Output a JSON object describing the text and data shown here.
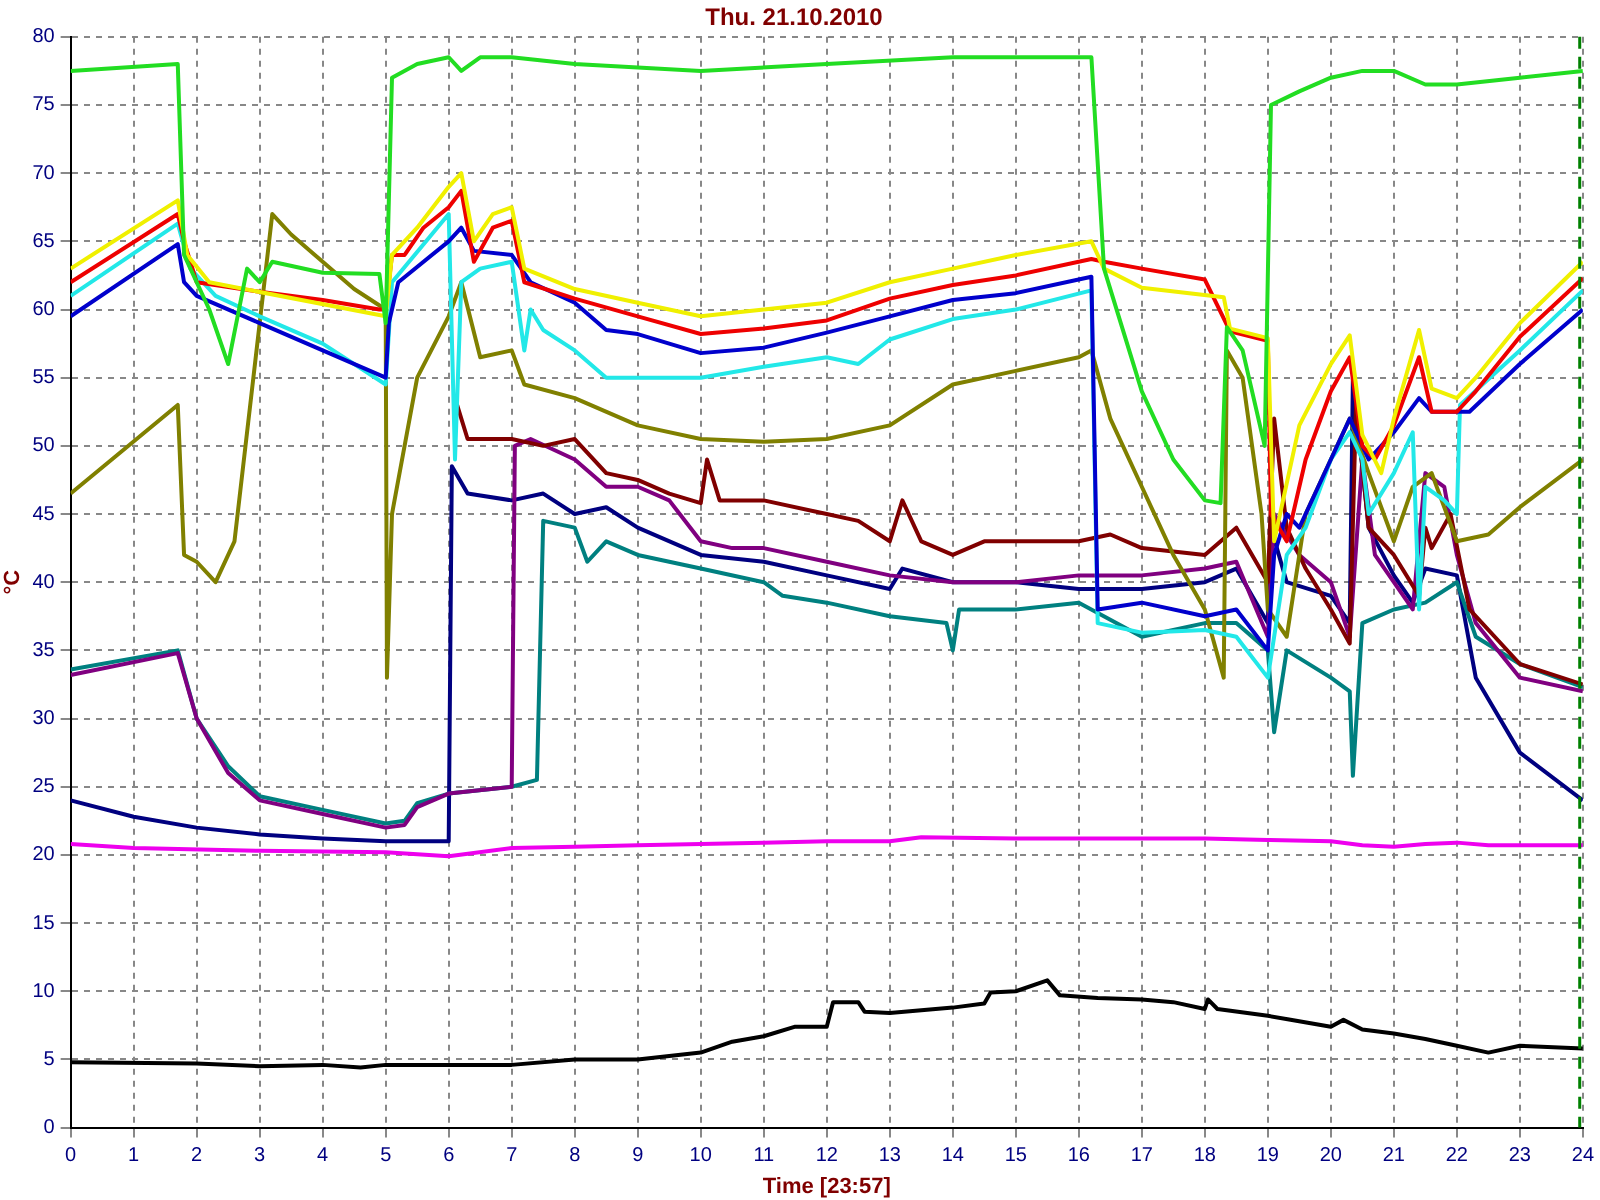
{
  "chart_data": {
    "type": "line",
    "title": "Thu. 21.10.2010",
    "xlabel": "Time [23:57]",
    "ylabel": "°C",
    "xlim": [
      0,
      24
    ],
    "xticks": [
      0,
      1,
      2,
      3,
      4,
      5,
      6,
      7,
      8,
      9,
      10,
      11,
      12,
      13,
      14,
      15,
      16,
      17,
      18,
      19,
      20,
      21,
      22,
      23,
      24
    ],
    "ylim": [
      0,
      80
    ],
    "yticks": [
      0,
      5,
      10,
      15,
      20,
      25,
      30,
      35,
      40,
      45,
      50,
      55,
      60,
      65,
      70,
      75,
      80
    ],
    "grid": true,
    "legend": false,
    "marker": "none",
    "line_style": "solid",
    "ref_lines": [
      {
        "axis": "x",
        "value": 23.95,
        "color": "#008000",
        "line_style": "dashed"
      }
    ],
    "series": [
      {
        "color": "#22dd22",
        "x": [
          0,
          1.7,
          1.8,
          2.2,
          2.5,
          2.8,
          3,
          3.2,
          4,
          4.9,
          5,
          5.1,
          5.5,
          6,
          6.2,
          6.5,
          7,
          8,
          10,
          12,
          14,
          16.2,
          16.4,
          17,
          17.5,
          18,
          18.25,
          18.35,
          18.6,
          18.95,
          19.05,
          19.5,
          20,
          20.5,
          21,
          21.5,
          22,
          23,
          24
        ],
        "values": [
          77.5,
          78,
          64,
          60,
          56,
          63,
          62,
          63.5,
          62.7,
          62.6,
          59,
          77,
          78,
          78.5,
          77.5,
          78.5,
          78.5,
          78,
          77.5,
          78,
          78.5,
          78.5,
          63,
          54,
          49,
          46,
          45.8,
          58.7,
          57,
          50,
          75,
          76,
          77,
          77.5,
          77.5,
          76.5,
          76.5,
          77,
          77.5
        ]
      },
      {
        "color": "#f0f000",
        "x": [
          0,
          1.7,
          1.85,
          2.2,
          5,
          5.1,
          5.5,
          6,
          6.2,
          6.4,
          6.7,
          7,
          7.2,
          8,
          9,
          10,
          11,
          12,
          13,
          14,
          15,
          16.2,
          16.4,
          17,
          18.3,
          18.4,
          19,
          19.1,
          19.5,
          20,
          20.3,
          20.5,
          20.8,
          21,
          21.4,
          21.6,
          22,
          22.3,
          23,
          24
        ],
        "values": [
          63,
          68,
          64,
          62,
          59.5,
          64,
          66,
          69,
          70,
          65,
          67,
          67.5,
          63,
          61.5,
          60.5,
          59.5,
          60,
          60.5,
          62,
          63,
          64,
          65,
          63,
          61.6,
          60.9,
          58.6,
          57.9,
          43,
          51.5,
          56,
          58.1,
          50.8,
          48,
          52,
          58.5,
          54.2,
          53.5,
          55,
          59,
          63.5
        ]
      },
      {
        "color": "#ee0000",
        "x": [
          0,
          1.7,
          1.8,
          2,
          3,
          4,
          4.9,
          5,
          5.1,
          5.3,
          5.6,
          6,
          6.2,
          6.4,
          6.7,
          7,
          7.2,
          8,
          9,
          10,
          11,
          12,
          13,
          14,
          15,
          16.2,
          16.4,
          17,
          18,
          18.4,
          19,
          19.05,
          19.3,
          19.6,
          20,
          20.3,
          20.5,
          20.7,
          21,
          21.4,
          21.6,
          22,
          22.3,
          23,
          24
        ],
        "values": [
          62,
          67,
          65,
          62,
          61.3,
          60.7,
          60,
          60,
          64,
          64,
          66,
          67.5,
          68.7,
          63.5,
          66,
          66.5,
          62,
          60.8,
          59.5,
          58.2,
          58.6,
          59.2,
          60.8,
          61.8,
          62.5,
          63.7,
          63.5,
          63,
          62.2,
          58.4,
          57.7,
          45,
          43,
          49,
          54,
          56.5,
          50,
          49,
          51.5,
          56.5,
          52.5,
          52.5,
          54,
          58,
          62.3
        ]
      },
      {
        "color": "#0000cc",
        "x": [
          0,
          1.7,
          1.8,
          2,
          3,
          4,
          5,
          5.05,
          5.2,
          6,
          6.2,
          6.4,
          7,
          7.3,
          8,
          8.5,
          9,
          10,
          11,
          12,
          13,
          14,
          15,
          16.2,
          16.3,
          17,
          18,
          18.5,
          19,
          19.1,
          19.3,
          19.5,
          20,
          20.3,
          20.6,
          21,
          21.4,
          21.6,
          22.2,
          23,
          24
        ],
        "values": [
          59.5,
          64.8,
          62,
          61,
          59,
          57,
          55,
          59,
          62,
          65,
          66,
          64.3,
          64,
          62,
          60.5,
          58.5,
          58.2,
          56.8,
          57.2,
          58.3,
          59.5,
          60.7,
          61.2,
          62.4,
          38,
          38.5,
          37.5,
          38,
          35,
          42,
          45,
          44,
          49,
          52,
          49,
          51,
          53.5,
          52.5,
          52.5,
          56,
          60
        ]
      },
      {
        "color": "#22e8e8",
        "x": [
          0,
          1.7,
          1.9,
          2.3,
          3,
          4,
          5,
          5.1,
          6,
          6.1,
          6.2,
          6.5,
          7,
          7.2,
          7.3,
          7.5,
          8,
          8.5,
          9,
          10,
          11,
          12,
          12.5,
          13,
          14,
          15,
          16.2,
          16.3,
          17,
          18,
          18.5,
          19,
          19.3,
          19.6,
          20,
          20.3,
          20.5,
          20.6,
          21,
          21.3,
          21.4,
          21.5,
          21.8,
          22,
          22.05,
          23,
          24
        ],
        "values": [
          61,
          66.3,
          63,
          61,
          59.5,
          57.5,
          54.5,
          62,
          67,
          49,
          62,
          63,
          63.5,
          57,
          60,
          58.5,
          57,
          55,
          55,
          55,
          55.8,
          56.5,
          56,
          57.8,
          59.3,
          60,
          61.4,
          37,
          36.3,
          36.5,
          36,
          33,
          42,
          44,
          49,
          51,
          49,
          45,
          48,
          51,
          38,
          47,
          46,
          45,
          53,
          57,
          61.4
        ]
      },
      {
        "color": "#808000",
        "x": [
          0,
          1.7,
          1.8,
          2,
          2.3,
          2.6,
          3,
          3.2,
          3.5,
          4,
          4.5,
          5,
          5.02,
          5.1,
          5.5,
          6,
          6.2,
          6.5,
          7,
          7.2,
          8,
          9,
          10,
          11,
          12,
          13,
          14,
          15,
          16,
          16.2,
          16.5,
          17,
          17.5,
          18,
          18.3,
          18.35,
          18.6,
          18.9,
          19,
          19.3,
          19.6,
          20,
          20.3,
          20.6,
          21,
          21.3,
          21.6,
          22,
          22.5,
          23,
          24
        ],
        "values": [
          46.5,
          53,
          42,
          41.5,
          40,
          43,
          59,
          67,
          65.5,
          63.5,
          61.5,
          60,
          33,
          45,
          55,
          59.5,
          62,
          56.5,
          57,
          54.5,
          53.5,
          51.5,
          50.5,
          50.3,
          50.5,
          51.5,
          54.5,
          55.5,
          56.5,
          57,
          52,
          47,
          42,
          38,
          33,
          57,
          55,
          45,
          38,
          36,
          45,
          49,
          52,
          48,
          43,
          47,
          48,
          43,
          43.5,
          45.5,
          49
        ]
      },
      {
        "color": "#800000",
        "x": [
          6.1,
          6.3,
          7,
          7.5,
          8,
          8.5,
          9,
          9.5,
          10,
          10.1,
          10.3,
          11,
          12,
          12.5,
          13,
          13.2,
          13.5,
          14,
          14.5,
          15,
          16,
          16.5,
          17,
          18,
          18.5,
          19,
          19.1,
          19.3,
          19.6,
          20,
          20.3,
          20.4,
          20.6,
          21,
          21.4,
          21.5,
          21.6,
          21.9,
          22.2,
          23,
          24
        ],
        "values": [
          53.5,
          50.5,
          50.5,
          50,
          50.5,
          48,
          47.5,
          46.5,
          45.8,
          49,
          46,
          46,
          45,
          44.5,
          43,
          46,
          43,
          42,
          43,
          43,
          43,
          43.5,
          42.5,
          42,
          44,
          40,
          52,
          44,
          41,
          38,
          35.5,
          53,
          44,
          42,
          39,
          44,
          42.5,
          45,
          38,
          34,
          32.5
        ]
      },
      {
        "color": "#800080",
        "x": [
          0,
          1.7,
          2,
          2.5,
          3,
          4,
          5,
          5.3,
          5.5,
          6,
          7,
          7.05,
          7.3,
          8,
          8.5,
          9,
          9.5,
          10,
          10.5,
          11,
          12,
          13,
          14,
          15,
          16,
          17,
          18,
          18.5,
          19,
          19.1,
          19.5,
          20,
          20.3,
          20.5,
          20.7,
          21,
          21.3,
          21.5,
          21.8,
          22,
          22.3,
          23,
          24
        ],
        "values": [
          33.2,
          34.8,
          30,
          26,
          24,
          23,
          22,
          22.2,
          23.5,
          24.5,
          25,
          50,
          50.5,
          49,
          47,
          47,
          46,
          43,
          42.5,
          42.5,
          41.5,
          40.5,
          40,
          40,
          40.5,
          40.5,
          41,
          41.5,
          36,
          45,
          42,
          40,
          36,
          49,
          42,
          40,
          38,
          48,
          47,
          42,
          37,
          33,
          32
        ]
      },
      {
        "color": "#008080",
        "x": [
          0,
          1.7,
          2,
          2.5,
          3,
          4,
          5,
          5.3,
          5.5,
          6,
          7,
          7.4,
          7.5,
          8,
          8.2,
          8.5,
          9,
          10,
          11,
          11.3,
          12,
          13,
          13.9,
          14,
          14.1,
          15,
          16,
          17,
          18,
          18.5,
          19,
          19.1,
          19.3,
          20,
          20.3,
          20.35,
          20.5,
          21,
          21.5,
          22,
          22.3,
          23,
          24
        ],
        "values": [
          33.6,
          35,
          30,
          26.5,
          24.3,
          23.3,
          22.3,
          22.5,
          23.8,
          24.5,
          25,
          25.5,
          44.5,
          44,
          41.5,
          43,
          42,
          41,
          40,
          39,
          38.5,
          37.5,
          37,
          35,
          38,
          38,
          38.5,
          36,
          37,
          37,
          35,
          29,
          35,
          33,
          32,
          25.8,
          37,
          38,
          38.5,
          40,
          36,
          34,
          32.3
        ]
      },
      {
        "color": "#000080",
        "x": [
          0,
          1,
          2,
          3,
          4,
          5,
          6,
          6.05,
          6.3,
          7,
          7.5,
          8,
          8.5,
          9,
          10,
          11,
          12,
          13,
          13.2,
          14,
          15,
          16,
          17,
          18,
          18.5,
          19,
          19.05,
          19.3,
          20,
          20.3,
          20.35,
          20.6,
          21,
          21.3,
          21.5,
          22,
          22.3,
          23,
          24
        ],
        "values": [
          24,
          22.8,
          22,
          21.5,
          21.2,
          21,
          21,
          48.5,
          46.5,
          46,
          46.5,
          45,
          45.5,
          44,
          42,
          41.5,
          40.5,
          39.5,
          41,
          40,
          40,
          39.5,
          39.5,
          40,
          41,
          37,
          44,
          40,
          39,
          37,
          55,
          44,
          40.5,
          38.5,
          41,
          40.5,
          33,
          27.5,
          24
        ]
      },
      {
        "color": "#ee00ee",
        "x": [
          0,
          1,
          3,
          5,
          6,
          7,
          8,
          9,
          11,
          12,
          13,
          13.5,
          15,
          17,
          18,
          19,
          20,
          20.5,
          21,
          21.5,
          22,
          22.5,
          24
        ],
        "values": [
          20.8,
          20.5,
          20.3,
          20.2,
          19.9,
          20.5,
          20.6,
          20.7,
          20.9,
          21,
          21,
          21.3,
          21.2,
          21.2,
          21.2,
          21.1,
          21,
          20.7,
          20.6,
          20.8,
          20.9,
          20.7,
          20.7
        ]
      },
      {
        "color": "#000000",
        "x": [
          0,
          2,
          3,
          4,
          4.6,
          5,
          6,
          7,
          8,
          9,
          10,
          10.5,
          11,
          11.5,
          12,
          12.1,
          12.5,
          12.6,
          13,
          14,
          14.5,
          14.6,
          15,
          15.5,
          15.7,
          16.3,
          17,
          17.5,
          18,
          18.05,
          18.2,
          19,
          20,
          20.2,
          20.5,
          21,
          21.5,
          22,
          22.5,
          23,
          24
        ],
        "values": [
          4.8,
          4.7,
          4.5,
          4.6,
          4.4,
          4.6,
          4.6,
          4.6,
          5,
          5,
          5.5,
          6.3,
          6.7,
          7.4,
          7.4,
          9.2,
          9.2,
          8.5,
          8.4,
          8.8,
          9.1,
          9.9,
          10,
          10.8,
          9.7,
          9.5,
          9.4,
          9.2,
          8.7,
          9.4,
          8.7,
          8.2,
          7.4,
          7.9,
          7.2,
          6.9,
          6.5,
          6,
          5.5,
          6,
          5.8
        ]
      }
    ]
  }
}
